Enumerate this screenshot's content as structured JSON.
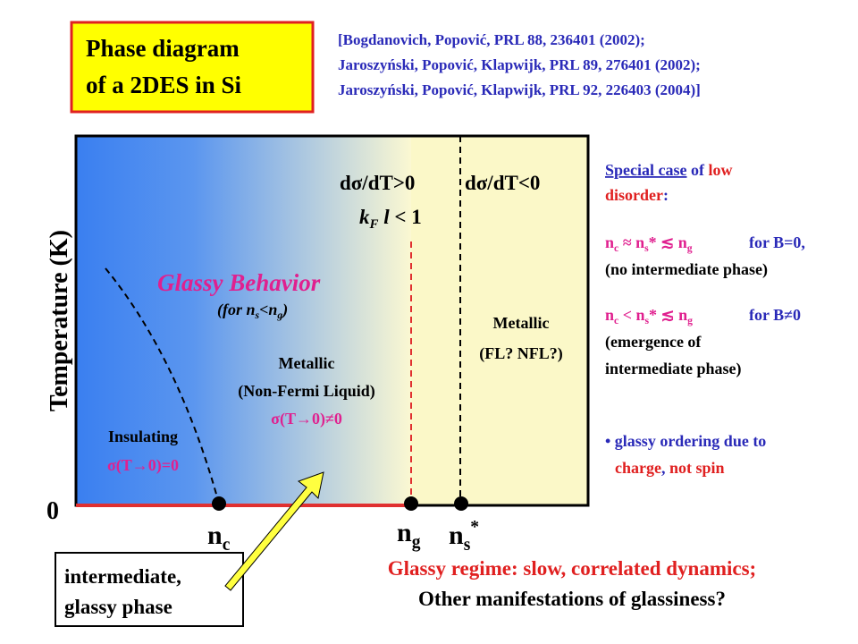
{
  "title": {
    "lines": [
      "Phase diagram",
      "of a 2DES in Si"
    ]
  },
  "references": [
    "[Bogdanovich, Popović, PRL 88, 236401 (2002);",
    "Jaroszyński, Popović, Klapwijk, PRL 89, 276401 (2002);",
    "Jaroszyński, Popović, Klapwijk, PRL 92, 226403 (2004)]"
  ],
  "diagram": {
    "y_axis_label": "Temperature (K)",
    "origin_label": "0",
    "regions": {
      "dsdt_pos": "dσ/dT>0",
      "dsdt_neg": "dσ/dT<0",
      "kfl": [
        "k",
        "F",
        " l",
        " < 1"
      ],
      "glassy": "Glassy Behavior",
      "glassy_note": [
        "(for n",
        "s",
        "<n",
        "g",
        ")"
      ],
      "metallic_nfl": [
        "Metallic",
        "(Non-Fermi Liquid)",
        "σ(T→0)≠0"
      ],
      "metallic_fl": [
        "Metallic",
        "(FL? NFL?)"
      ],
      "insulating": [
        "Insulating",
        "σ(T→0)=0"
      ]
    },
    "x_labels": {
      "nc": [
        "n",
        "c"
      ],
      "ng": [
        "n",
        "g"
      ],
      "ns": [
        "n",
        "s",
        "*"
      ]
    }
  },
  "callout": [
    "intermediate,",
    "glassy phase"
  ],
  "bottom_note": [
    "Glassy regime: slow, correlated dynamics;",
    "Other manifestations of glassiness?"
  ],
  "side_panel": {
    "heading": [
      "Special case",
      " of ",
      "low",
      "disorder",
      ":"
    ],
    "case1": [
      "n",
      "c",
      " ≈ n",
      "s",
      "* ≲ n",
      "g",
      "for B=0,",
      "(no intermediate phase)"
    ],
    "case2": [
      "n",
      "c",
      " < n",
      "s",
      "* ≲ n",
      "g",
      "for B≠0",
      "(emergence of",
      "intermediate phase)"
    ],
    "bullet": [
      "• glassy ordering due to",
      "charge",
      ", ",
      "not spin"
    ]
  }
}
